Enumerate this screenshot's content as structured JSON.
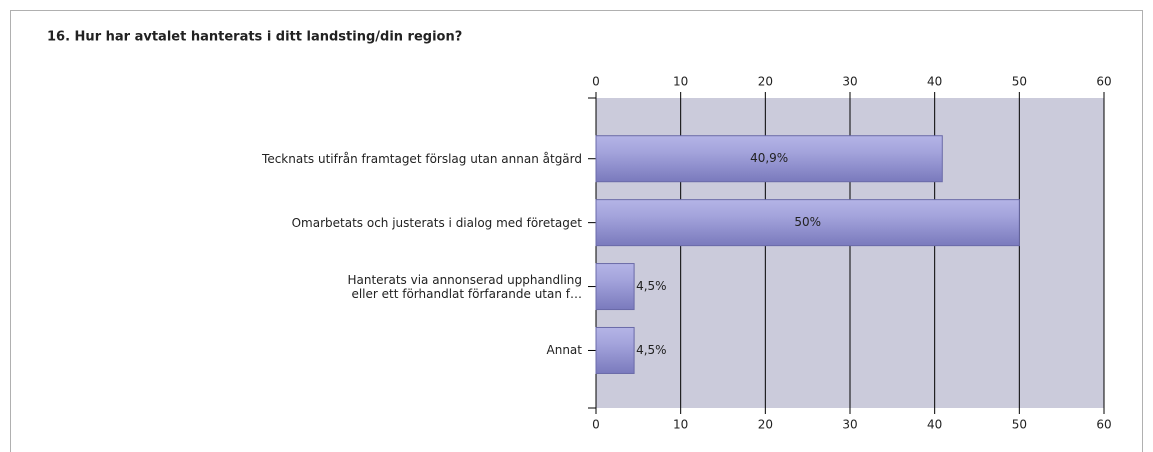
{
  "chart_data": {
    "type": "bar",
    "orientation": "horizontal",
    "title": "16. Hur har avtalet hanterats i ditt landsting/din region?",
    "categories": [
      "Tecknats utifrån framtaget förslag utan annan åtgärd",
      "Omarbetats och justerats i dialog med företaget",
      "Hanterats via annonserad upphandling\neller ett förhandlat förfarande utan f…",
      "Annat"
    ],
    "values": [
      40.9,
      50,
      4.5,
      4.5
    ],
    "value_labels": [
      "40,9%",
      "50%",
      "4,5%",
      "4,5%"
    ],
    "color": "#9a9ad6",
    "xlim": [
      0,
      60
    ],
    "xticks": [
      0,
      10,
      20,
      30,
      40,
      50,
      60
    ],
    "grid": true
  }
}
